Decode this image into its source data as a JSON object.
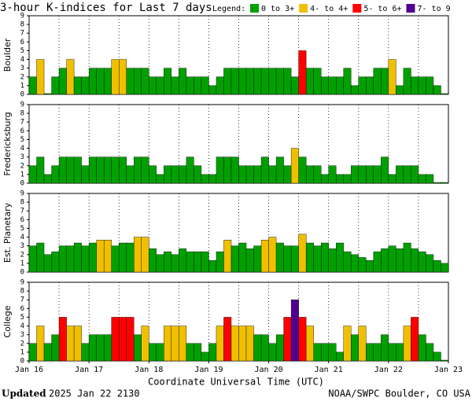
{
  "title": "3-hour K-indices for Last 7 days",
  "legend": {
    "title": "Legend:",
    "items": [
      {
        "label": "0 to 3+",
        "color": "#00a000"
      },
      {
        "label": "4- to 4+",
        "color": "#f0c000"
      },
      {
        "label": "5- to 6+",
        "color": "#ff0000"
      },
      {
        "label": "7- to 9",
        "color": "#500090"
      }
    ]
  },
  "x_labels": [
    "Jan 16",
    "Jan 17",
    "Jan 18",
    "Jan 19",
    "Jan 20",
    "Jan 21",
    "Jan 22",
    "Jan 23"
  ],
  "xlabel": "Coordinate Universal Time (UTC)",
  "footer": {
    "updated_label": "Updated",
    "updated_time": "2025 Jan 22 2130",
    "credit": "NOAA/SWPC Boulder, CO USA"
  },
  "chart_data": [
    {
      "type": "bar",
      "ylabel": "Boulder",
      "ylim": [
        0,
        9
      ],
      "yticks": [
        0,
        1,
        2,
        3,
        4,
        5,
        6,
        7,
        8,
        9
      ],
      "values": [
        2,
        4,
        0,
        2,
        3,
        4,
        2,
        2,
        3,
        3,
        3,
        4,
        4,
        3,
        3,
        3,
        2,
        2,
        3,
        2,
        3,
        2,
        2,
        2,
        1,
        2,
        3,
        3,
        3,
        3,
        3,
        3,
        3,
        3,
        3,
        2,
        5,
        3,
        3,
        2,
        2,
        2,
        3,
        1,
        2,
        2,
        3,
        3,
        4,
        1,
        3,
        2,
        2,
        2,
        1,
        0
      ],
      "colors": [
        "#00a000",
        "#f0c000",
        "#00a000",
        "#00a000",
        "#00a000",
        "#f0c000",
        "#00a000",
        "#00a000",
        "#00a000",
        "#00a000",
        "#00a000",
        "#f0c000",
        "#f0c000",
        "#00a000",
        "#00a000",
        "#00a000",
        "#00a000",
        "#00a000",
        "#00a000",
        "#00a000",
        "#00a000",
        "#00a000",
        "#00a000",
        "#00a000",
        "#00a000",
        "#00a000",
        "#00a000",
        "#00a000",
        "#00a000",
        "#00a000",
        "#00a000",
        "#00a000",
        "#00a000",
        "#00a000",
        "#00a000",
        "#00a000",
        "#ff0000",
        "#00a000",
        "#00a000",
        "#00a000",
        "#00a000",
        "#00a000",
        "#00a000",
        "#00a000",
        "#00a000",
        "#00a000",
        "#00a000",
        "#00a000",
        "#f0c000",
        "#00a000",
        "#00a000",
        "#00a000",
        "#00a000",
        "#00a000",
        "#00a000",
        "#00a000"
      ]
    },
    {
      "type": "bar",
      "ylabel": "Fredericksburg",
      "ylim": [
        0,
        9
      ],
      "yticks": [
        0,
        1,
        2,
        3,
        4,
        5,
        6,
        7,
        8,
        9
      ],
      "values": [
        2,
        3,
        1,
        2,
        3,
        3,
        3,
        2,
        3,
        3,
        3,
        3,
        3,
        2,
        3,
        3,
        2,
        1,
        2,
        2,
        2,
        3,
        2,
        1,
        1,
        3,
        3,
        3,
        2,
        2,
        2,
        3,
        2,
        3,
        2,
        4,
        3,
        2,
        2,
        1,
        2,
        1,
        1,
        2,
        2,
        2,
        2,
        3,
        1,
        2,
        2,
        2,
        1,
        1,
        0,
        0
      ],
      "colors": [
        "#00a000",
        "#00a000",
        "#00a000",
        "#00a000",
        "#00a000",
        "#00a000",
        "#00a000",
        "#00a000",
        "#00a000",
        "#00a000",
        "#00a000",
        "#00a000",
        "#00a000",
        "#00a000",
        "#00a000",
        "#00a000",
        "#00a000",
        "#00a000",
        "#00a000",
        "#00a000",
        "#00a000",
        "#00a000",
        "#00a000",
        "#00a000",
        "#00a000",
        "#00a000",
        "#00a000",
        "#00a000",
        "#00a000",
        "#00a000",
        "#00a000",
        "#00a000",
        "#00a000",
        "#00a000",
        "#00a000",
        "#f0c000",
        "#00a000",
        "#00a000",
        "#00a000",
        "#00a000",
        "#00a000",
        "#00a000",
        "#00a000",
        "#00a000",
        "#00a000",
        "#00a000",
        "#00a000",
        "#00a000",
        "#00a000",
        "#00a000",
        "#00a000",
        "#00a000",
        "#00a000",
        "#00a000",
        "#00a000",
        "#00a000"
      ]
    },
    {
      "type": "bar",
      "ylabel": "Est. Planetary",
      "ylim": [
        0,
        9
      ],
      "yticks": [
        0,
        1,
        2,
        3,
        4,
        5,
        6,
        7,
        8,
        9
      ],
      "values": [
        3,
        3.33,
        2,
        2.33,
        3,
        3,
        3.33,
        3,
        3.33,
        3.67,
        3.67,
        3,
        3.33,
        3.33,
        4,
        4,
        2.67,
        2,
        2.33,
        2,
        2.67,
        2.33,
        2.33,
        2.33,
        1.33,
        2.33,
        3.67,
        3,
        3.33,
        2.67,
        3,
        3.67,
        4,
        3.33,
        3,
        3,
        4.33,
        3.33,
        3,
        3.33,
        2.67,
        3.33,
        2.33,
        2,
        1.67,
        1.33,
        2.33,
        2.67,
        3,
        2.67,
        3.33,
        2.67,
        2.33,
        2,
        1.33,
        1
      ],
      "colors": [
        "#00a000",
        "#00a000",
        "#00a000",
        "#00a000",
        "#00a000",
        "#00a000",
        "#00a000",
        "#00a000",
        "#00a000",
        "#f0c000",
        "#f0c000",
        "#00a000",
        "#00a000",
        "#00a000",
        "#f0c000",
        "#f0c000",
        "#00a000",
        "#00a000",
        "#00a000",
        "#00a000",
        "#00a000",
        "#00a000",
        "#00a000",
        "#00a000",
        "#00a000",
        "#00a000",
        "#f0c000",
        "#00a000",
        "#00a000",
        "#00a000",
        "#00a000",
        "#f0c000",
        "#f0c000",
        "#00a000",
        "#00a000",
        "#00a000",
        "#f0c000",
        "#00a000",
        "#00a000",
        "#00a000",
        "#00a000",
        "#00a000",
        "#00a000",
        "#00a000",
        "#00a000",
        "#00a000",
        "#00a000",
        "#00a000",
        "#00a000",
        "#00a000",
        "#00a000",
        "#00a000",
        "#00a000",
        "#00a000",
        "#00a000",
        "#00a000"
      ]
    },
    {
      "type": "bar",
      "ylabel": "College",
      "ylim": [
        0,
        9
      ],
      "yticks": [
        0,
        1,
        2,
        3,
        4,
        5,
        6,
        7,
        8,
        9
      ],
      "values": [
        2,
        4,
        2,
        3,
        5,
        4,
        4,
        2,
        3,
        3,
        3,
        5,
        5,
        5,
        3,
        4,
        2,
        2,
        4,
        4,
        4,
        2,
        2,
        1,
        2,
        4,
        5,
        4,
        4,
        4,
        3,
        3,
        2,
        3,
        5,
        7,
        5,
        4,
        2,
        2,
        2,
        1,
        4,
        3,
        4,
        2,
        2,
        3,
        2,
        2,
        4,
        5,
        3,
        2,
        1,
        0
      ],
      "colors": [
        "#00a000",
        "#f0c000",
        "#00a000",
        "#00a000",
        "#ff0000",
        "#f0c000",
        "#f0c000",
        "#00a000",
        "#00a000",
        "#00a000",
        "#00a000",
        "#ff0000",
        "#ff0000",
        "#ff0000",
        "#00a000",
        "#f0c000",
        "#00a000",
        "#00a000",
        "#f0c000",
        "#f0c000",
        "#f0c000",
        "#00a000",
        "#00a000",
        "#00a000",
        "#00a000",
        "#f0c000",
        "#ff0000",
        "#f0c000",
        "#f0c000",
        "#f0c000",
        "#00a000",
        "#00a000",
        "#00a000",
        "#00a000",
        "#ff0000",
        "#500090",
        "#ff0000",
        "#f0c000",
        "#00a000",
        "#00a000",
        "#00a000",
        "#00a000",
        "#f0c000",
        "#00a000",
        "#f0c000",
        "#00a000",
        "#00a000",
        "#00a000",
        "#00a000",
        "#00a000",
        "#f0c000",
        "#ff0000",
        "#00a000",
        "#00a000",
        "#00a000",
        "#00a000"
      ]
    }
  ]
}
